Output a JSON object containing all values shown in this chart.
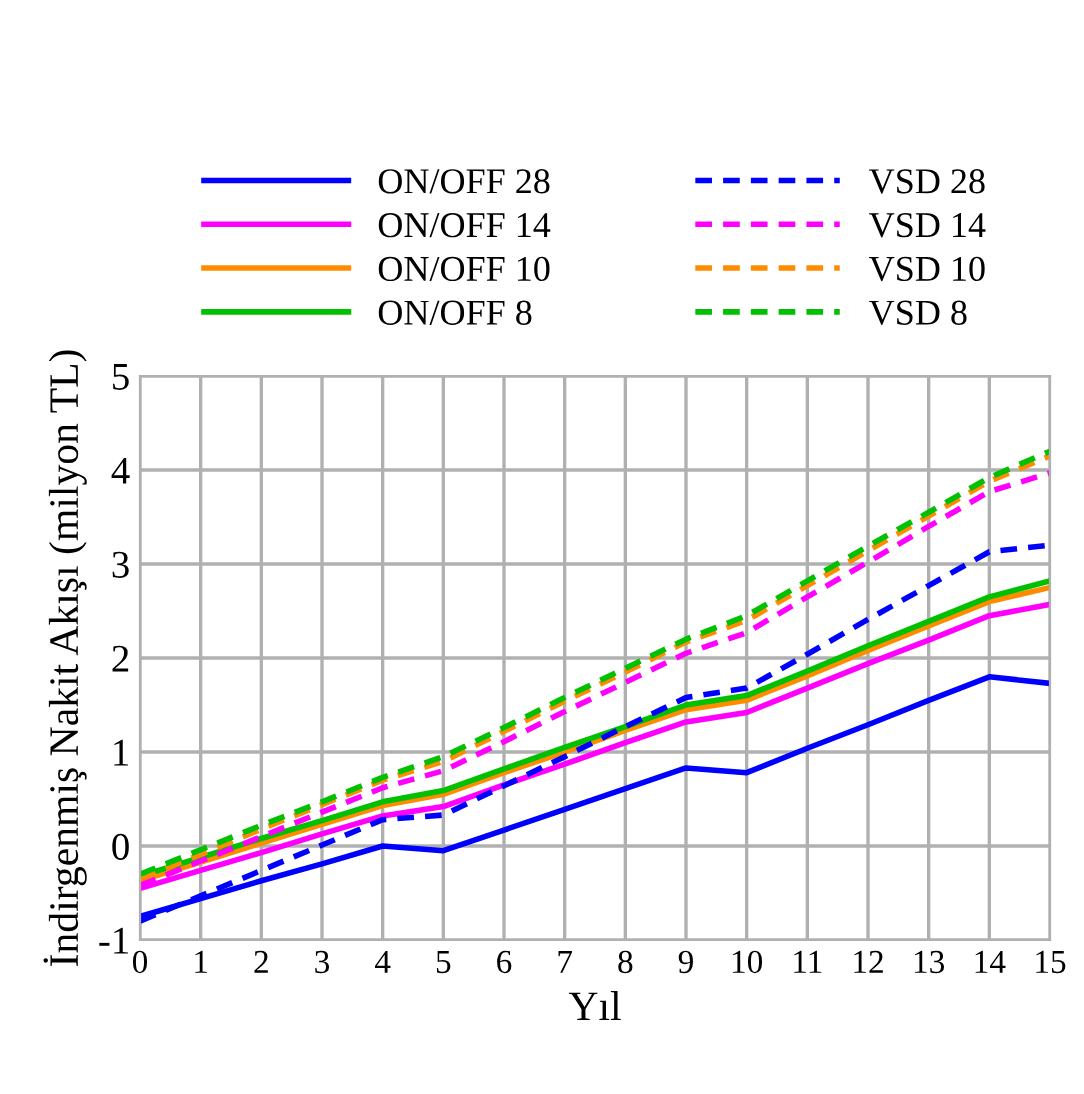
{
  "chart_data": {
    "type": "line",
    "xlabel": "Yıl",
    "ylabel": "İndirgenmiş Nakit Akışı (milyon TL)",
    "x": [
      0,
      1,
      2,
      3,
      4,
      5,
      6,
      7,
      8,
      9,
      10,
      11,
      12,
      13,
      14,
      15
    ],
    "xlim": [
      0,
      15
    ],
    "xticks": [
      0,
      1,
      2,
      3,
      4,
      5,
      6,
      7,
      8,
      9,
      10,
      11,
      12,
      13,
      14,
      15
    ],
    "ylim": [
      -1,
      5
    ],
    "yticks": [
      -1,
      0,
      1,
      2,
      3,
      4,
      5
    ],
    "grid": true,
    "legend": "top",
    "marker": "none",
    "series": [
      {
        "name": "ON/OFF 28",
        "color": "#0000ff",
        "line_style": "solid",
        "values": [
          -0.75,
          -0.56,
          -0.37,
          -0.19,
          0.0,
          -0.05,
          0.17,
          0.39,
          0.61,
          0.83,
          0.78,
          1.04,
          1.29,
          1.55,
          1.8,
          1.73
        ]
      },
      {
        "name": "ON/OFF 14",
        "color": "#ff00ff",
        "line_style": "solid",
        "values": [
          -0.45,
          -0.26,
          -0.07,
          0.13,
          0.32,
          0.42,
          0.65,
          0.87,
          1.1,
          1.32,
          1.42,
          1.68,
          1.94,
          2.19,
          2.45,
          2.57
        ]
      },
      {
        "name": "ON/OFF 10",
        "color": "#ff8c00",
        "line_style": "solid",
        "values": [
          -0.37,
          -0.17,
          0.03,
          0.23,
          0.43,
          0.55,
          0.78,
          1.0,
          1.23,
          1.45,
          1.55,
          1.81,
          2.08,
          2.34,
          2.6,
          2.75
        ]
      },
      {
        "name": "ON/OFF 8",
        "color": "#00c000",
        "line_style": "solid",
        "values": [
          -0.32,
          -0.12,
          0.08,
          0.27,
          0.47,
          0.59,
          0.82,
          1.05,
          1.27,
          1.5,
          1.6,
          1.86,
          2.13,
          2.39,
          2.65,
          2.82
        ]
      },
      {
        "name": "VSD 28",
        "color": "#0000ff",
        "line_style": "dashed",
        "values": [
          -0.8,
          -0.53,
          -0.26,
          0.01,
          0.28,
          0.33,
          0.64,
          0.95,
          1.27,
          1.58,
          1.68,
          2.04,
          2.41,
          2.77,
          3.13,
          3.2
        ]
      },
      {
        "name": "VSD 14",
        "color": "#ff00ff",
        "line_style": "dashed",
        "values": [
          -0.42,
          -0.16,
          0.1,
          0.36,
          0.62,
          0.8,
          1.11,
          1.43,
          1.74,
          2.05,
          2.27,
          2.65,
          3.02,
          3.4,
          3.77,
          3.97
        ]
      },
      {
        "name": "VSD 10",
        "color": "#ff8c00",
        "line_style": "dashed",
        "values": [
          -0.35,
          -0.09,
          0.18,
          0.44,
          0.7,
          0.9,
          1.22,
          1.54,
          1.85,
          2.17,
          2.4,
          2.77,
          3.14,
          3.51,
          3.88,
          4.15
        ]
      },
      {
        "name": "VSD 8",
        "color": "#00c000",
        "line_style": "dashed",
        "values": [
          -0.3,
          -0.04,
          0.22,
          0.47,
          0.73,
          0.95,
          1.26,
          1.58,
          1.89,
          2.2,
          2.45,
          2.82,
          3.19,
          3.55,
          3.92,
          4.2
        ]
      }
    ]
  }
}
